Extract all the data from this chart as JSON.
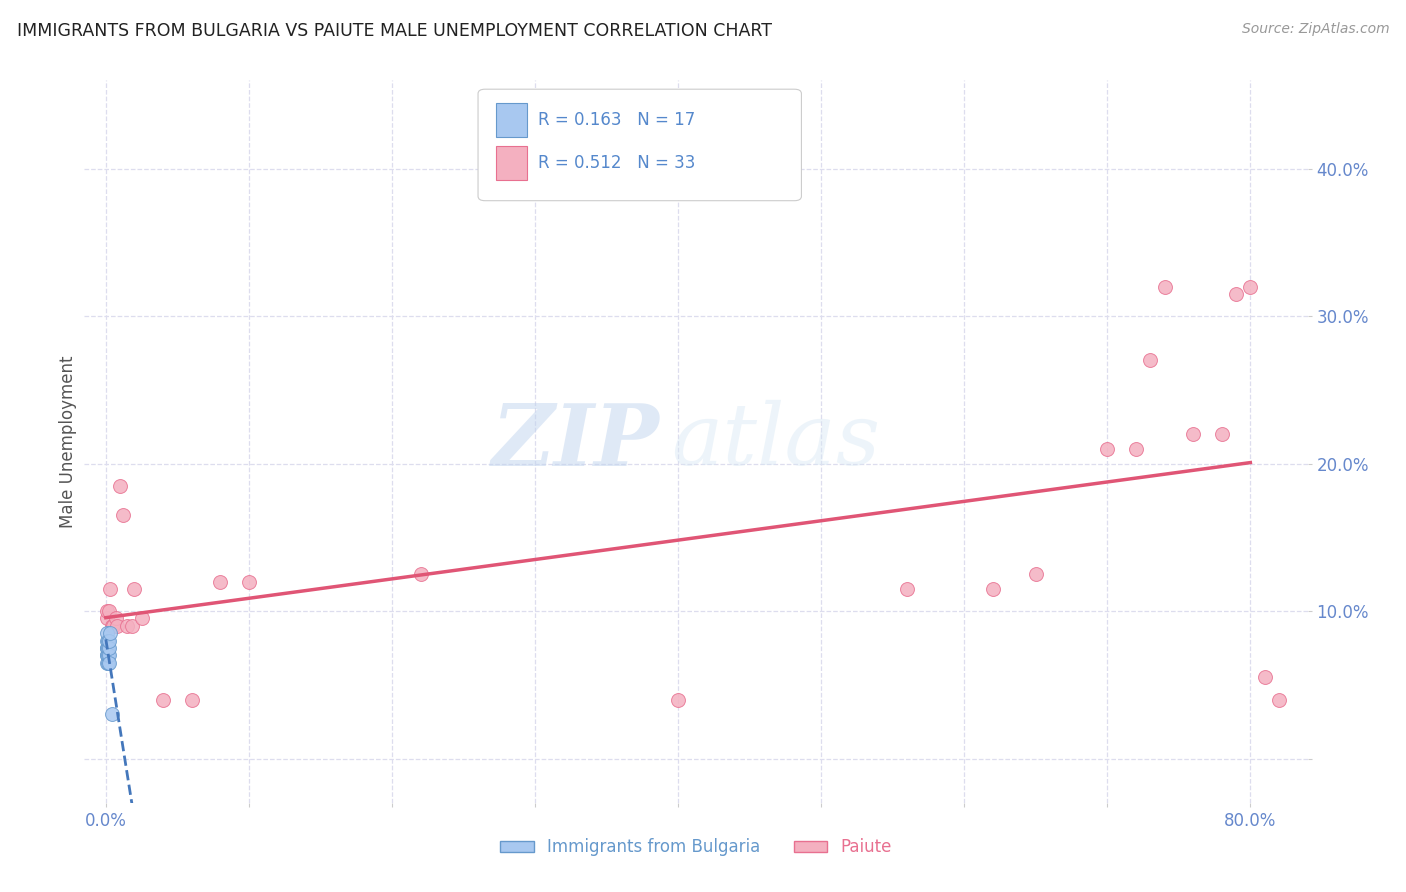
{
  "title": "IMMIGRANTS FROM BULGARIA VS PAIUTE MALE UNEMPLOYMENT CORRELATION CHART",
  "source": "Source: ZipAtlas.com",
  "ylabel": "Male Unemployment",
  "x_ticks": [
    0.0,
    0.1,
    0.2,
    0.3,
    0.4,
    0.5,
    0.6,
    0.7,
    0.8
  ],
  "x_tick_labels_show": [
    "0.0%",
    "",
    "",
    "",
    "",
    "",
    "",
    "",
    "80.0%"
  ],
  "y_ticks": [
    0.0,
    0.1,
    0.2,
    0.3,
    0.4
  ],
  "y_tick_labels": [
    "",
    "10.0%",
    "20.0%",
    "30.0%",
    "40.0%"
  ],
  "xlim": [
    -0.015,
    0.84
  ],
  "ylim": [
    -0.03,
    0.46
  ],
  "bulgaria_x": [
    0.0005,
    0.0005,
    0.0005,
    0.0008,
    0.001,
    0.001,
    0.001,
    0.0012,
    0.0012,
    0.0015,
    0.0015,
    0.002,
    0.002,
    0.002,
    0.0025,
    0.003,
    0.004
  ],
  "bulgaria_y": [
    0.065,
    0.07,
    0.075,
    0.07,
    0.075,
    0.08,
    0.085,
    0.065,
    0.07,
    0.075,
    0.08,
    0.07,
    0.075,
    0.08,
    0.065,
    0.085,
    0.03
  ],
  "paiute_x": [
    0.0005,
    0.001,
    0.002,
    0.003,
    0.004,
    0.005,
    0.007,
    0.008,
    0.01,
    0.012,
    0.015,
    0.018,
    0.02,
    0.025,
    0.04,
    0.06,
    0.08,
    0.1,
    0.22,
    0.4,
    0.56,
    0.62,
    0.65,
    0.7,
    0.72,
    0.73,
    0.74,
    0.76,
    0.78,
    0.79,
    0.8,
    0.81,
    0.82
  ],
  "paiute_y": [
    0.095,
    0.1,
    0.1,
    0.115,
    0.09,
    0.09,
    0.095,
    0.09,
    0.185,
    0.165,
    0.09,
    0.09,
    0.115,
    0.095,
    0.04,
    0.04,
    0.12,
    0.12,
    0.125,
    0.04,
    0.115,
    0.115,
    0.125,
    0.21,
    0.21,
    0.27,
    0.32,
    0.22,
    0.22,
    0.315,
    0.32,
    0.055,
    0.04
  ],
  "bulgaria_color": "#a8c8f0",
  "paiute_color": "#f4b0c0",
  "bulgaria_edge": "#6699cc",
  "paiute_edge": "#e87090",
  "trend_bulgaria_color": "#4477bb",
  "trend_paiute_color": "#e05575",
  "legend_R_bulgaria": "R = 0.163",
  "legend_N_bulgaria": "N = 17",
  "legend_R_paiute": "R = 0.512",
  "legend_N_paiute": "N = 33",
  "watermark_zip": "ZIP",
  "watermark_atlas": "atlas",
  "scatter_size": 100,
  "background_color": "#ffffff",
  "grid_color": "#ddddee",
  "title_color": "#222222",
  "axis_label_color": "#555555",
  "tick_color": "#6688cc",
  "source_color": "#999999",
  "legend_text_color": "#333333",
  "legend_value_color": "#5588cc"
}
